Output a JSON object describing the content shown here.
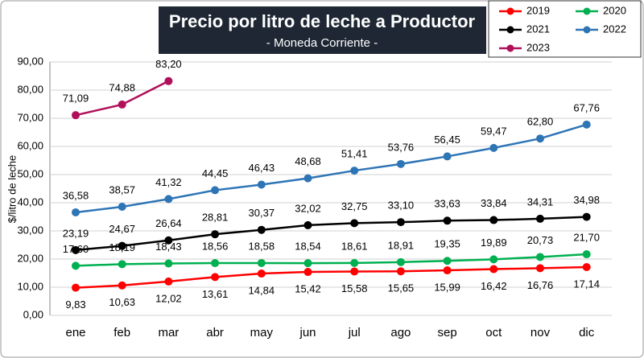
{
  "chart_data": {
    "type": "line",
    "title": "Precio por litro de leche a Productor",
    "subtitle": "- Moneda Corriente -",
    "y_label": "$/litro de leche",
    "categories": [
      "ene",
      "feb",
      "mar",
      "abr",
      "may",
      "jun",
      "jul",
      "ago",
      "sep",
      "oct",
      "nov",
      "dic"
    ],
    "ylim": [
      0,
      90
    ],
    "yticks": [
      {
        "value": 0,
        "label": "0,00"
      },
      {
        "value": 10,
        "label": "10,00"
      },
      {
        "value": 20,
        "label": "20,00"
      },
      {
        "value": 30,
        "label": "30,00"
      },
      {
        "value": 40,
        "label": "40,00"
      },
      {
        "value": 50,
        "label": "50,00"
      },
      {
        "value": 60,
        "label": "60,00"
      },
      {
        "value": 70,
        "label": "70,00"
      },
      {
        "value": 80,
        "label": "80,00"
      },
      {
        "value": 90,
        "label": "90,00"
      }
    ],
    "grid": true,
    "series": [
      {
        "name": "2019",
        "color": "#ff0000",
        "values": [
          9.83,
          10.63,
          12.02,
          13.61,
          14.84,
          15.42,
          15.58,
          15.65,
          15.99,
          16.42,
          16.76,
          17.14
        ],
        "value_labels": [
          "9,83",
          "10,63",
          "12,02",
          "13,61",
          "14,84",
          "15,42",
          "15,58",
          "15,65",
          "15,99",
          "16,42",
          "16,76",
          "17,14"
        ]
      },
      {
        "name": "2020",
        "color": "#00b050",
        "values": [
          17.6,
          18.19,
          18.43,
          18.56,
          18.58,
          18.54,
          18.61,
          18.91,
          19.35,
          19.89,
          20.73,
          21.7
        ],
        "value_labels": [
          "17,60",
          "18,19",
          "18,43",
          "18,56",
          "18,58",
          "18,54",
          "18,61",
          "18,91",
          "19,35",
          "19,89",
          "20,73",
          "21,70"
        ]
      },
      {
        "name": "2021",
        "color": "#000000",
        "values": [
          23.19,
          24.67,
          26.64,
          28.81,
          30.37,
          32.02,
          32.75,
          33.1,
          33.63,
          33.84,
          34.31,
          34.98
        ],
        "value_labels": [
          "23,19",
          "24,67",
          "26,64",
          "28,81",
          "30,37",
          "32,02",
          "32,75",
          "33,10",
          "33,63",
          "33,84",
          "34,31",
          "34,98"
        ]
      },
      {
        "name": "2022",
        "color": "#2e75b6",
        "values": [
          36.58,
          38.57,
          41.32,
          44.45,
          46.43,
          48.68,
          51.41,
          53.76,
          56.45,
          59.47,
          62.8,
          67.76
        ],
        "value_labels": [
          "36,58",
          "38,57",
          "41,32",
          "44,45",
          "46,43",
          "48,68",
          "51,41",
          "53,76",
          "56,45",
          "59,47",
          "62,80",
          "67,76"
        ]
      },
      {
        "name": "2023",
        "color": "#b0105a",
        "values": [
          71.09,
          74.88,
          83.2,
          null,
          null,
          null,
          null,
          null,
          null,
          null,
          null,
          null
        ],
        "value_labels": [
          "71,09",
          "74,88",
          "83,20",
          null,
          null,
          null,
          null,
          null,
          null,
          null,
          null,
          null
        ]
      }
    ]
  }
}
